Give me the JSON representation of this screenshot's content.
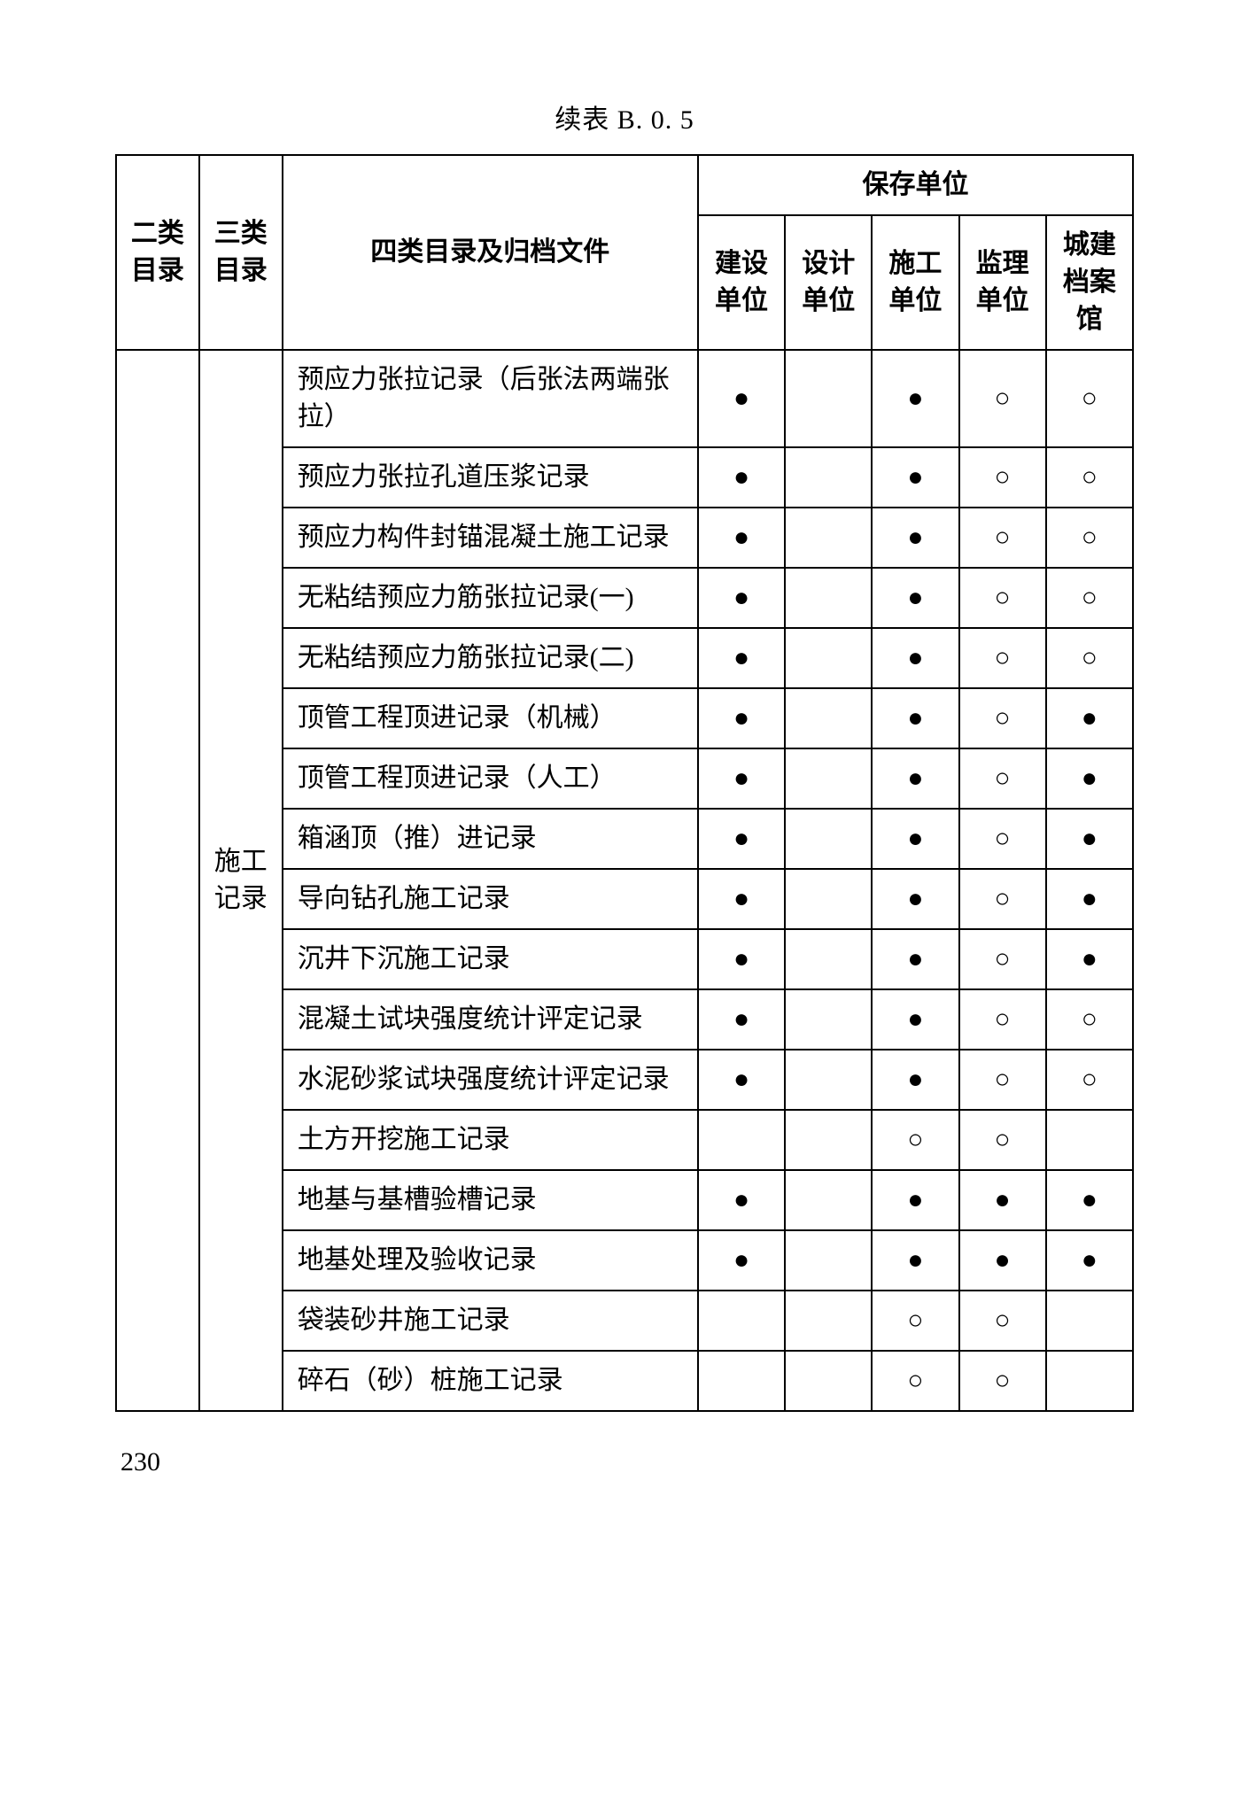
{
  "caption": "续表 B. 0. 5",
  "page_number": "230",
  "header": {
    "col1": "二类目录",
    "col2": "三类目录",
    "col3": "四类目录及归档文件",
    "group": "保存单位",
    "sub1": "建设单位",
    "sub2": "设计单位",
    "sub3": "施工单位",
    "sub4": "监理单位",
    "sub5": "城建档案馆"
  },
  "row_group_label": "施工记录",
  "symbols": {
    "filled": "●",
    "empty": "○",
    "blank": ""
  },
  "rows": [
    {
      "desc": "预应力张拉记录（后张法两端张拉）",
      "m": [
        "filled",
        "blank",
        "filled",
        "empty",
        "empty"
      ]
    },
    {
      "desc": "预应力张拉孔道压浆记录",
      "m": [
        "filled",
        "blank",
        "filled",
        "empty",
        "empty"
      ]
    },
    {
      "desc": "预应力构件封锚混凝土施工记录",
      "m": [
        "filled",
        "blank",
        "filled",
        "empty",
        "empty"
      ]
    },
    {
      "desc": "无粘结预应力筋张拉记录(一)",
      "m": [
        "filled",
        "blank",
        "filled",
        "empty",
        "empty"
      ]
    },
    {
      "desc": "无粘结预应力筋张拉记录(二)",
      "m": [
        "filled",
        "blank",
        "filled",
        "empty",
        "empty"
      ]
    },
    {
      "desc": "顶管工程顶进记录（机械）",
      "m": [
        "filled",
        "blank",
        "filled",
        "empty",
        "filled"
      ]
    },
    {
      "desc": "顶管工程顶进记录（人工）",
      "m": [
        "filled",
        "blank",
        "filled",
        "empty",
        "filled"
      ]
    },
    {
      "desc": "箱涵顶（推）进记录",
      "m": [
        "filled",
        "blank",
        "filled",
        "empty",
        "filled"
      ]
    },
    {
      "desc": "导向钻孔施工记录",
      "m": [
        "filled",
        "blank",
        "filled",
        "empty",
        "filled"
      ]
    },
    {
      "desc": "沉井下沉施工记录",
      "m": [
        "filled",
        "blank",
        "filled",
        "empty",
        "filled"
      ]
    },
    {
      "desc": "混凝土试块强度统计评定记录",
      "m": [
        "filled",
        "blank",
        "filled",
        "empty",
        "empty"
      ]
    },
    {
      "desc": "水泥砂浆试块强度统计评定记录",
      "m": [
        "filled",
        "blank",
        "filled",
        "empty",
        "empty"
      ]
    },
    {
      "desc": "土方开挖施工记录",
      "m": [
        "blank",
        "blank",
        "empty",
        "empty",
        "blank"
      ]
    },
    {
      "desc": "地基与基槽验槽记录",
      "m": [
        "filled",
        "blank",
        "filled",
        "filled",
        "filled"
      ]
    },
    {
      "desc": "地基处理及验收记录",
      "m": [
        "filled",
        "blank",
        "filled",
        "filled",
        "filled"
      ]
    },
    {
      "desc": "袋装砂井施工记录",
      "m": [
        "blank",
        "blank",
        "empty",
        "empty",
        "blank"
      ]
    },
    {
      "desc": "碎石（砂）桩施工记录",
      "m": [
        "blank",
        "blank",
        "empty",
        "empty",
        "blank"
      ]
    }
  ]
}
